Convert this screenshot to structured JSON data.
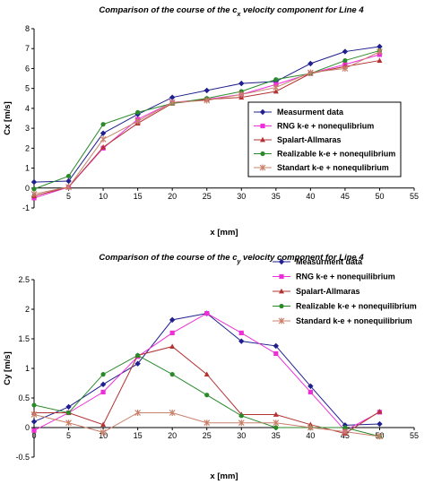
{
  "chart_data": [
    {
      "type": "line",
      "title": "Comparison of the course of the c",
      "title_sub": "x",
      "title_rest": " velocity component for Line 4",
      "xlabel": "x [mm]",
      "ylabel": "Cx [m/s]",
      "xlim": [
        0,
        55
      ],
      "ylim": [
        -1,
        8
      ],
      "xticks": [
        0,
        5,
        10,
        15,
        20,
        25,
        30,
        35,
        40,
        45,
        50,
        55
      ],
      "yticks": [
        -1,
        0,
        1,
        2,
        3,
        4,
        5,
        6,
        7,
        8
      ],
      "grid": false,
      "legend_placement": "bottom-right",
      "series": [
        {
          "name": "Measurment data",
          "color": "#1f1f8f",
          "marker": "diamond",
          "x": [
            0,
            5,
            10,
            15,
            20,
            25,
            30,
            35,
            40,
            45,
            50
          ],
          "y": [
            0.3,
            0.35,
            2.75,
            3.7,
            4.55,
            4.9,
            5.25,
            5.35,
            6.25,
            6.85,
            7.1
          ]
        },
        {
          "name": "RNG k-e + nonequlibrium",
          "color": "#ee2fd8",
          "marker": "square",
          "x": [
            0,
            5,
            10,
            15,
            20,
            25,
            30,
            35,
            40,
            45,
            50
          ],
          "y": [
            -0.5,
            0.05,
            2.0,
            3.45,
            4.3,
            4.45,
            4.7,
            5.2,
            5.75,
            6.2,
            6.7
          ]
        },
        {
          "name": "Spalart-Allmaras",
          "color": "#b33333",
          "marker": "triangle",
          "x": [
            0,
            5,
            10,
            15,
            20,
            25,
            30,
            35,
            40,
            45,
            50
          ],
          "y": [
            -0.4,
            0.05,
            2.05,
            3.25,
            4.25,
            4.45,
            4.55,
            4.85,
            5.75,
            6.1,
            6.4
          ]
        },
        {
          "name": "Realizable k-e + nonequlibrium",
          "color": "#2a8a2a",
          "marker": "circle",
          "x": [
            0,
            5,
            10,
            15,
            20,
            25,
            30,
            35,
            40,
            45,
            50
          ],
          "y": [
            -0.05,
            0.6,
            3.2,
            3.8,
            4.25,
            4.5,
            4.85,
            5.45,
            5.75,
            6.4,
            6.9
          ]
        },
        {
          "name": "Standart k-e + nonequlibrium",
          "color": "#c9806b",
          "marker": "star",
          "x": [
            0,
            5,
            10,
            15,
            20,
            25,
            30,
            35,
            40,
            45,
            50
          ],
          "y": [
            -0.3,
            0.05,
            2.45,
            3.35,
            4.3,
            4.4,
            4.7,
            5.05,
            5.8,
            6.0,
            6.85
          ]
        }
      ]
    },
    {
      "type": "line",
      "title": "Comparison of the course of the c",
      "title_sub": "y",
      "title_rest": " velocity component for Line 4",
      "xlabel": "x [mm]",
      "ylabel": "Cy [m/s]",
      "xlim": [
        0,
        55
      ],
      "ylim": [
        -0.5,
        2.5
      ],
      "xticks": [
        0,
        5,
        10,
        15,
        20,
        25,
        30,
        35,
        40,
        45,
        50,
        55
      ],
      "yticks": [
        -0.5,
        0,
        0.5,
        1,
        1.5,
        2,
        2.5
      ],
      "grid": false,
      "legend_placement": "top-right",
      "series": [
        {
          "name": "Measurment data",
          "color": "#1f1f8f",
          "marker": "diamond",
          "x": [
            0,
            5,
            10,
            15,
            20,
            25,
            30,
            35,
            40,
            45,
            50
          ],
          "y": [
            0.1,
            0.35,
            0.73,
            1.08,
            1.82,
            1.93,
            1.46,
            1.38,
            0.7,
            0.04,
            0.06
          ]
        },
        {
          "name": "RNG k-e + nonequilibrium",
          "color": "#ee2fd8",
          "marker": "square",
          "x": [
            0,
            5,
            10,
            15,
            20,
            25,
            30,
            35,
            40,
            45,
            50
          ],
          "y": [
            -0.05,
            0.25,
            0.6,
            1.2,
            1.6,
            1.93,
            1.6,
            1.25,
            0.6,
            -0.05,
            0.26
          ]
        },
        {
          "name": "Spalart-Allmaras",
          "color": "#b33333",
          "marker": "triangle",
          "x": [
            0,
            5,
            10,
            15,
            20,
            25,
            30,
            35,
            40,
            45,
            50
          ],
          "y": [
            0.25,
            0.25,
            0.05,
            1.22,
            1.37,
            0.9,
            0.22,
            0.22,
            0.05,
            -0.1,
            0.27
          ]
        },
        {
          "name": "Realizable k-e + nonequilibrium",
          "color": "#2a8a2a",
          "marker": "circle",
          "x": [
            0,
            5,
            10,
            15,
            20,
            25,
            30,
            35,
            40,
            45,
            50
          ],
          "y": [
            0.38,
            0.25,
            0.9,
            1.22,
            0.9,
            0.55,
            0.2,
            0.0,
            0.0,
            0.0,
            -0.15
          ]
        },
        {
          "name": "Standard k-e + nonequilibrium",
          "color": "#c9806b",
          "marker": "star",
          "x": [
            0,
            5,
            10,
            15,
            20,
            25,
            30,
            35,
            40,
            45,
            50
          ],
          "y": [
            0.22,
            0.08,
            -0.08,
            0.25,
            0.25,
            0.08,
            0.08,
            0.08,
            0.0,
            -0.07,
            -0.15
          ]
        }
      ]
    }
  ]
}
